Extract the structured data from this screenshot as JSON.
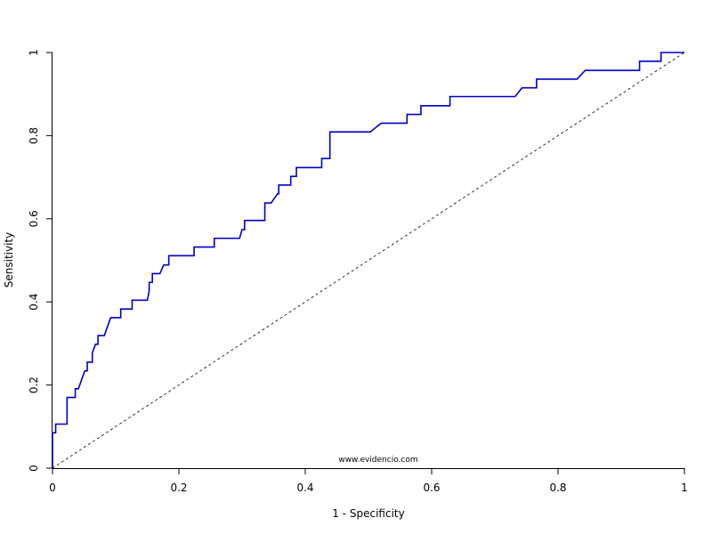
{
  "chart_data": {
    "type": "line",
    "xlabel": "1 - Specificity",
    "ylabel": "Sensitivity",
    "xlim": [
      0,
      1
    ],
    "ylim": [
      0,
      1
    ],
    "x_ticks": [
      "0",
      "0.2",
      "0.4",
      "0.6",
      "0.8",
      "1"
    ],
    "y_ticks": [
      "0",
      "0.2",
      "0.4",
      "0.6",
      "0.8",
      "1"
    ],
    "grid": false,
    "watermark": "www.evidencio.com",
    "series": [
      {
        "color": "#0000cc",
        "points": [
          [
            0,
            0
          ],
          [
            0,
            0.085
          ],
          [
            0.005,
            0.085
          ],
          [
            0.005,
            0.106
          ],
          [
            0.023,
            0.106
          ],
          [
            0.023,
            0.17
          ],
          [
            0.036,
            0.17
          ],
          [
            0.036,
            0.191
          ],
          [
            0.041,
            0.191
          ],
          [
            0.051,
            0.234
          ],
          [
            0.055,
            0.234
          ],
          [
            0.055,
            0.255
          ],
          [
            0.063,
            0.255
          ],
          [
            0.063,
            0.277
          ],
          [
            0.068,
            0.298
          ],
          [
            0.072,
            0.298
          ],
          [
            0.072,
            0.319
          ],
          [
            0.082,
            0.319
          ],
          [
            0.092,
            0.362
          ],
          [
            0.108,
            0.362
          ],
          [
            0.108,
            0.383
          ],
          [
            0.126,
            0.383
          ],
          [
            0.126,
            0.404
          ],
          [
            0.15,
            0.404
          ],
          [
            0.153,
            0.426
          ],
          [
            0.153,
            0.447
          ],
          [
            0.158,
            0.447
          ],
          [
            0.158,
            0.468
          ],
          [
            0.17,
            0.468
          ],
          [
            0.176,
            0.489
          ],
          [
            0.184,
            0.489
          ],
          [
            0.184,
            0.511
          ],
          [
            0.224,
            0.511
          ],
          [
            0.224,
            0.532
          ],
          [
            0.256,
            0.532
          ],
          [
            0.256,
            0.553
          ],
          [
            0.296,
            0.553
          ],
          [
            0.3,
            0.574
          ],
          [
            0.304,
            0.574
          ],
          [
            0.304,
            0.596
          ],
          [
            0.336,
            0.596
          ],
          [
            0.336,
            0.638
          ],
          [
            0.346,
            0.638
          ],
          [
            0.356,
            0.66
          ],
          [
            0.358,
            0.66
          ],
          [
            0.358,
            0.681
          ],
          [
            0.377,
            0.681
          ],
          [
            0.377,
            0.702
          ],
          [
            0.386,
            0.702
          ],
          [
            0.386,
            0.723
          ],
          [
            0.426,
            0.723
          ],
          [
            0.426,
            0.745
          ],
          [
            0.439,
            0.745
          ],
          [
            0.439,
            0.809
          ],
          [
            0.503,
            0.809
          ],
          [
            0.52,
            0.83
          ],
          [
            0.561,
            0.83
          ],
          [
            0.561,
            0.851
          ],
          [
            0.583,
            0.851
          ],
          [
            0.583,
            0.872
          ],
          [
            0.629,
            0.872
          ],
          [
            0.629,
            0.894
          ],
          [
            0.732,
            0.894
          ],
          [
            0.743,
            0.915
          ],
          [
            0.766,
            0.915
          ],
          [
            0.766,
            0.936
          ],
          [
            0.83,
            0.936
          ],
          [
            0.843,
            0.957
          ],
          [
            0.929,
            0.957
          ],
          [
            0.929,
            0.979
          ],
          [
            0.963,
            0.979
          ],
          [
            0.963,
            1
          ],
          [
            1,
            1
          ]
        ]
      },
      {
        "color": "#000000",
        "dashed": true,
        "points": [
          [
            0,
            0
          ],
          [
            1,
            1
          ]
        ]
      }
    ]
  }
}
